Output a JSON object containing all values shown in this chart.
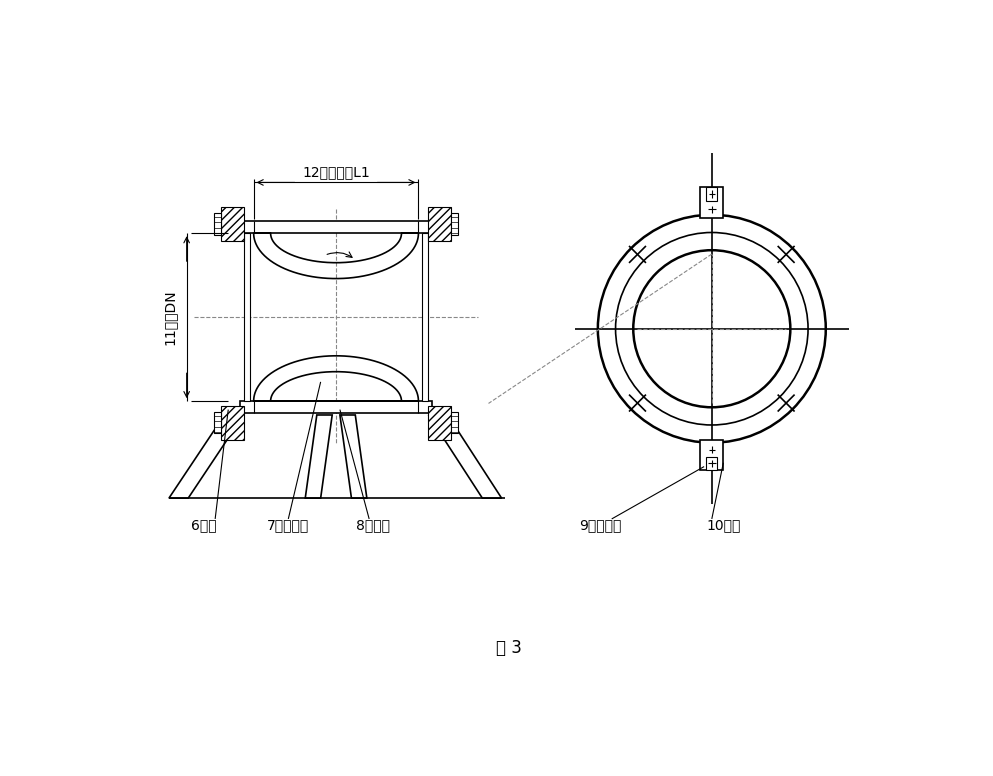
{
  "bg_color": "#ffffff",
  "line_color": "#000000",
  "title": "图 3",
  "label_6": "6拉杆",
  "label_7": "7橡胶球体",
  "label_8": "8法兰盘",
  "label_9": "9固定螺栓",
  "label_10": "10角锂",
  "label_11": "11管径DN",
  "label_12": "12法兰间距L1",
  "lw_thin": 0.8,
  "lw_med": 1.2,
  "lw_thick": 1.8
}
